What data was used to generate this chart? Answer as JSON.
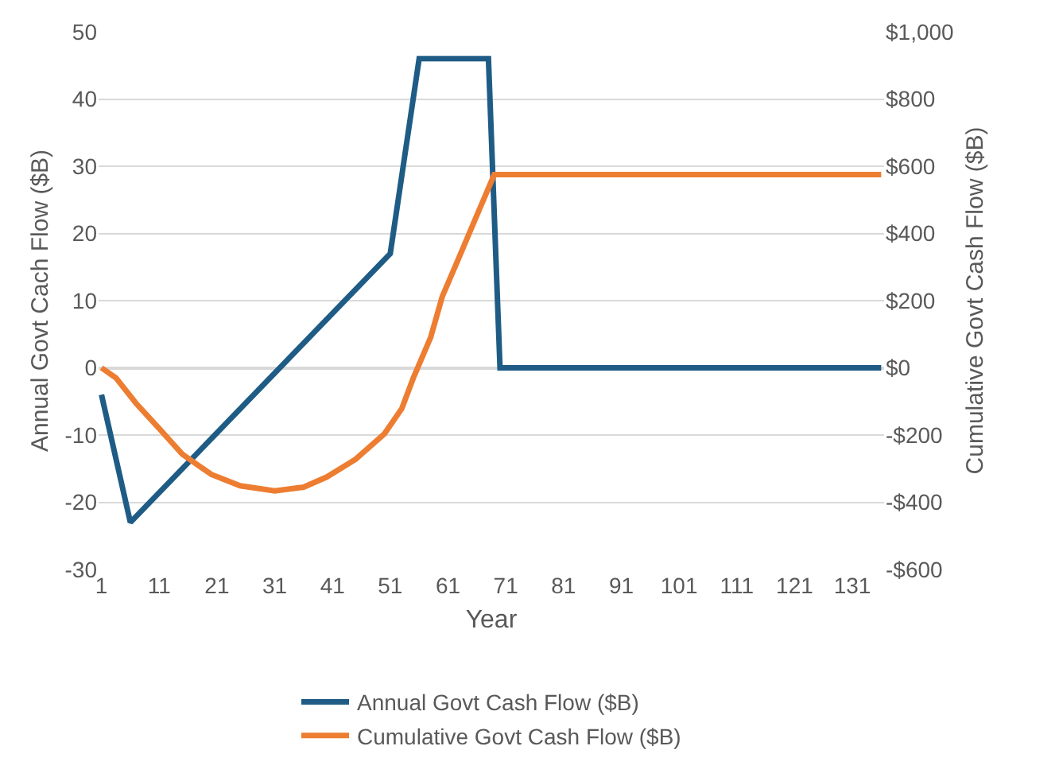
{
  "chart_data": {
    "type": "line",
    "xlabel": "Year",
    "ylabel": "Annual Govt Cach Flow ($B)",
    "y2label": "Cumulative Govt Cash Flow ($B)",
    "xlim": [
      0.5,
      136.5
    ],
    "xticks": [
      1,
      11,
      21,
      31,
      41,
      51,
      61,
      71,
      81,
      91,
      101,
      111,
      121,
      131
    ],
    "ylim": [
      -30,
      50
    ],
    "yticks": [
      -30,
      -20,
      -10,
      0,
      10,
      20,
      30,
      40,
      50
    ],
    "y2lim": [
      -600,
      1000
    ],
    "y2ticks": [
      {
        "value": -600,
        "label": "-$600"
      },
      {
        "value": -400,
        "label": "-$400"
      },
      {
        "value": -200,
        "label": "-$200"
      },
      {
        "value": 0,
        "label": "$0"
      },
      {
        "value": 200,
        "label": "$200"
      },
      {
        "value": 400,
        "label": "$400"
      },
      {
        "value": 600,
        "label": "$600"
      },
      {
        "value": 800,
        "label": "$800"
      },
      {
        "value": 1000,
        "label": "$1,000"
      }
    ],
    "grid": "y",
    "legend": "bottom",
    "marker": "none",
    "line_style": "solid",
    "series": [
      {
        "name": "Annual Govt Cash Flow ($B)",
        "color": "#1f5c85",
        "x": [
          1,
          6,
          51,
          56,
          68,
          70,
          136
        ],
        "values": [
          -4,
          -23,
          17,
          46,
          46,
          0,
          0
        ]
      },
      {
        "name": "Cumulative Govt Cash Flow ($B)",
        "color": "#ed7d31",
        "axis": "y2",
        "x": [
          1,
          3.5,
          7,
          11,
          15,
          20,
          25,
          31,
          36,
          40,
          45,
          50,
          53,
          55,
          58,
          60,
          63,
          66,
          69,
          136
        ],
        "values": [
          0,
          -30,
          -106,
          -181,
          -257,
          -317,
          -351,
          -366,
          -355,
          -325,
          -272,
          -196,
          -121,
          -30,
          91,
          212,
          332,
          454,
          575,
          575
        ]
      }
    ]
  }
}
